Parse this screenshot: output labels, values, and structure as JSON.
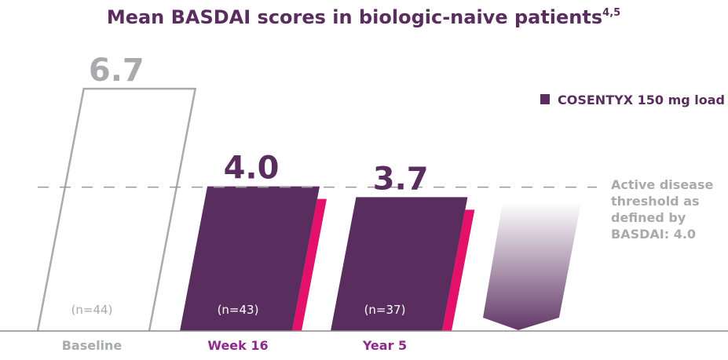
{
  "chart_data": {
    "type": "bar",
    "title": "Mean BASDAI scores in biologic-naive patients",
    "title_superscript": "4,5",
    "categories": [
      "Baseline",
      "Week 16",
      "Year 5"
    ],
    "values": [
      6.7,
      4.0,
      3.7
    ],
    "value_labels": [
      "6.7",
      "4.0",
      "3.7"
    ],
    "n_labels": [
      "(n=44)",
      "(n=43)",
      "(n=37)"
    ],
    "series": [
      {
        "name": "COSENTYX 150 mg load",
        "values": [
          6.7,
          4.0,
          3.7
        ]
      }
    ],
    "legend": {
      "label": "COSENTYX 150 mg load",
      "position": "top-right"
    },
    "threshold": {
      "value": 4.0,
      "label_lines": [
        "Active disease",
        "threshold as",
        "defined by",
        "BASDAI: 4.0"
      ]
    },
    "ylim": [
      0,
      6.7
    ],
    "grid": false,
    "colors": {
      "primary": "#5a2d5f",
      "accent": "#e5106a",
      "baseline": "#a8aaad",
      "category_highlight": "#8e2a8b"
    }
  }
}
